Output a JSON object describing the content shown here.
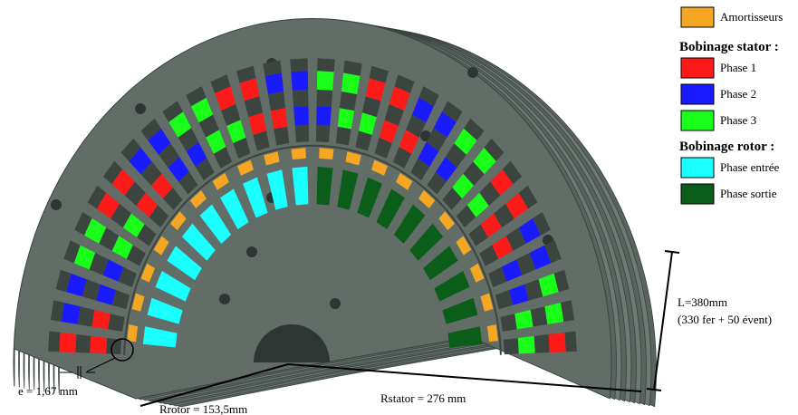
{
  "legend": {
    "damper": {
      "label": "Amortisseurs",
      "color": "#f5a623"
    },
    "stator": {
      "heading": "Bobinage stator :",
      "phases": [
        {
          "label": "Phase 1",
          "color": "#ff1a1a"
        },
        {
          "label": "Phase 2",
          "color": "#1a1aff"
        },
        {
          "label": "Phase 3",
          "color": "#1aff1a"
        }
      ]
    },
    "rotor": {
      "heading": "Bobinage rotor :",
      "phases": [
        {
          "label": "Phase entrée",
          "color": "#1affff"
        },
        {
          "label": "Phase sortie",
          "color": "#0b5e1a"
        }
      ]
    }
  },
  "annotations": {
    "length": "L=380mm",
    "length_detail": "(330 fer + 50 évent)",
    "gap": "e = 1,67 mm",
    "r_rotor": "Rrotor = 153,5mm",
    "r_stator": "Rstator = 276 mm"
  }
}
